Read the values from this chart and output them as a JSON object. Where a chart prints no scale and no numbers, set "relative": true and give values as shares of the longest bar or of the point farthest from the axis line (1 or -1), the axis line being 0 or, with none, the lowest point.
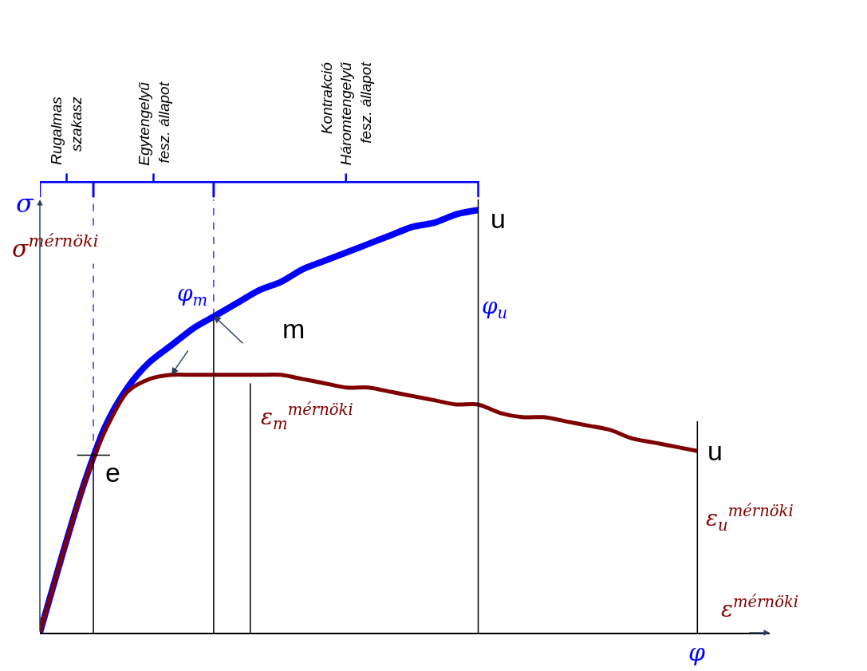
{
  "chart_data": {
    "type": "line",
    "relative": true,
    "legend": false,
    "marker": "none",
    "line_style": "solid",
    "xlabel": "φ",
    "categories": [
      null,
      null,
      null,
      null,
      null,
      null,
      null,
      null,
      null,
      null,
      null,
      null,
      null,
      null,
      null,
      null,
      null,
      null,
      null,
      null,
      null,
      null,
      null,
      null,
      null,
      null,
      null,
      null,
      null,
      null,
      null
    ],
    "series": [
      {
        "name": "σ",
        "color": "#0000ff",
        "values": [
          0,
          0.18,
          0.35,
          0.49,
          0.58,
          0.64,
          0.68,
          0.72,
          0.75,
          0.78,
          0.81,
          0.83,
          0.86,
          0.88,
          0.9,
          0.92,
          0.94,
          0.96,
          0.97,
          0.99,
          1.0,
          null,
          null,
          null,
          null,
          null,
          null,
          null,
          null,
          null,
          null
        ]
      },
      {
        "name": "σ$^{mérnöki}$",
        "color": "#7f0000",
        "values": [
          0,
          0.18,
          0.35,
          0.48,
          0.57,
          0.6,
          0.61,
          0.61,
          0.61,
          0.61,
          0.61,
          0.61,
          0.6,
          0.59,
          0.58,
          0.58,
          0.57,
          0.56,
          0.55,
          0.54,
          0.54,
          0.52,
          0.51,
          0.51,
          0.5,
          0.49,
          0.48,
          0.46,
          0.45,
          0.44,
          0.43
        ]
      }
    ],
    "annotations": [
      "e",
      "m",
      "u",
      "u",
      "φ$_{m}$",
      "ε$_{m}$$^{mérnöki}$",
      "φ$_{u}$",
      "ε$_{u}$$^{mérnöki}$",
      "ε$^{mérnöki}$",
      "Rugalmas\nszakasz",
      "Egytengelyű\nfesz. állapot",
      "Kontrakció\nHáromtengelyű\nfesz. állapot"
    ]
  }
}
